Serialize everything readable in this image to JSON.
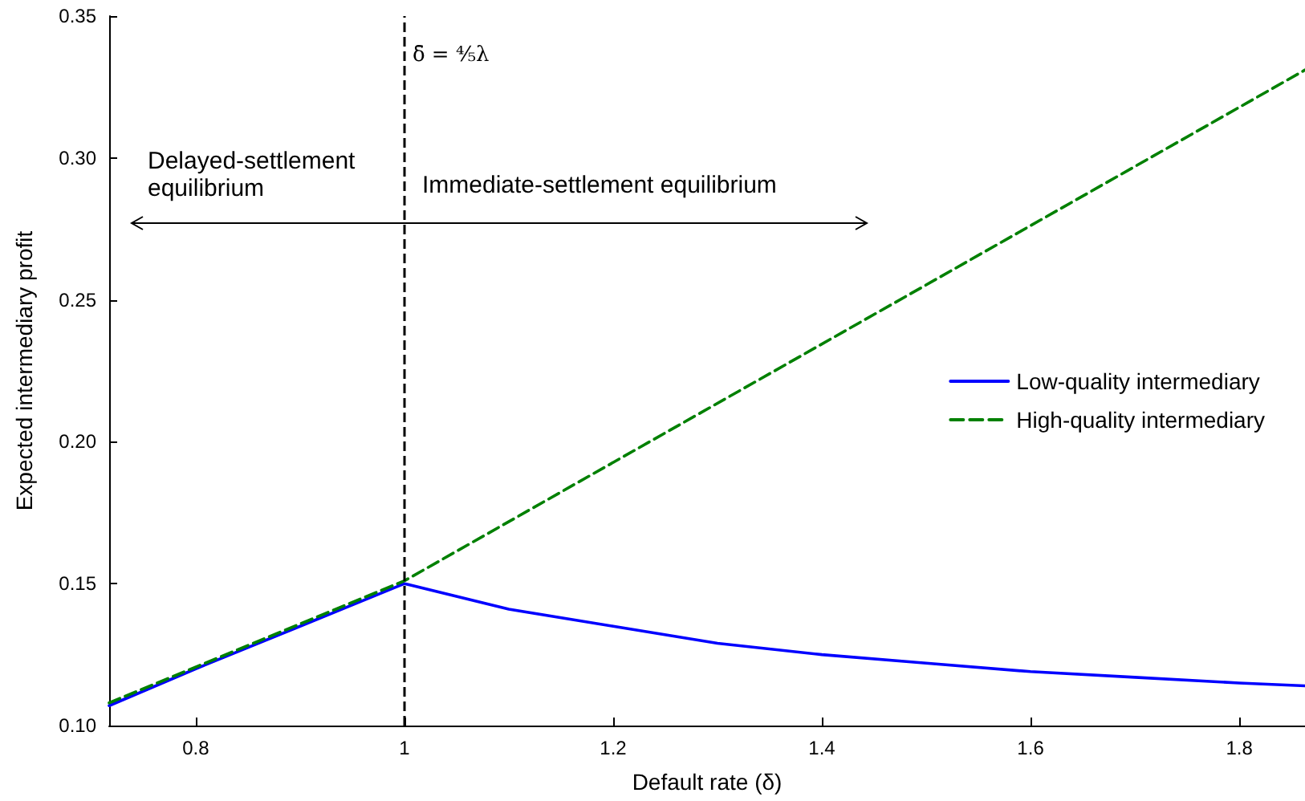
{
  "chart_data": {
    "type": "line",
    "xlabel": "Default rate (δ)",
    "ylabel": "Expected intermediary profit",
    "xlim": [
      0.717,
      1.863
    ],
    "xticks": [
      0.8,
      1.0,
      1.2,
      1.4,
      1.6,
      1.8
    ],
    "ylim": [
      0.1,
      0.35
    ],
    "yticks": [
      {
        "value": 0.1,
        "label": "0.10"
      },
      {
        "value": 0.15,
        "label": "0.15"
      },
      {
        "value": 0.2,
        "label": "0.20"
      },
      {
        "value": 0.25,
        "label": "0.25"
      },
      {
        "value": 0.3,
        "label": "0.30"
      },
      {
        "value": 0.35,
        "label": "0.35"
      }
    ],
    "series": [
      {
        "name": "Low-quality intermediary",
        "color": "#0000ff",
        "line_style": "solid",
        "x": [
          0.717,
          0.8,
          0.9,
          1.0,
          1.1,
          1.2,
          1.3,
          1.4,
          1.5,
          1.6,
          1.7,
          1.8,
          1.863
        ],
        "values": [
          0.107,
          0.12,
          0.135,
          0.15,
          0.141,
          0.135,
          0.129,
          0.125,
          0.122,
          0.119,
          0.117,
          0.115,
          0.114
        ]
      },
      {
        "name": "High-quality intermediary",
        "color": "#008000",
        "line_style": "dashed",
        "x": [
          0.717,
          1.0,
          1.863
        ],
        "values": [
          0.108,
          0.151,
          0.331
        ]
      }
    ],
    "ref_lines": [
      {
        "axis": "x",
        "value": 1.0,
        "label": "δ̄ = ⁴⁄₅λ",
        "color": "#000000",
        "line_style": "dashed"
      }
    ],
    "annotations": [
      "Delayed-settlement\nequilibrium",
      "Immediate-settlement equilibrium"
    ],
    "legend": "right",
    "grid": false,
    "marker": "none"
  }
}
